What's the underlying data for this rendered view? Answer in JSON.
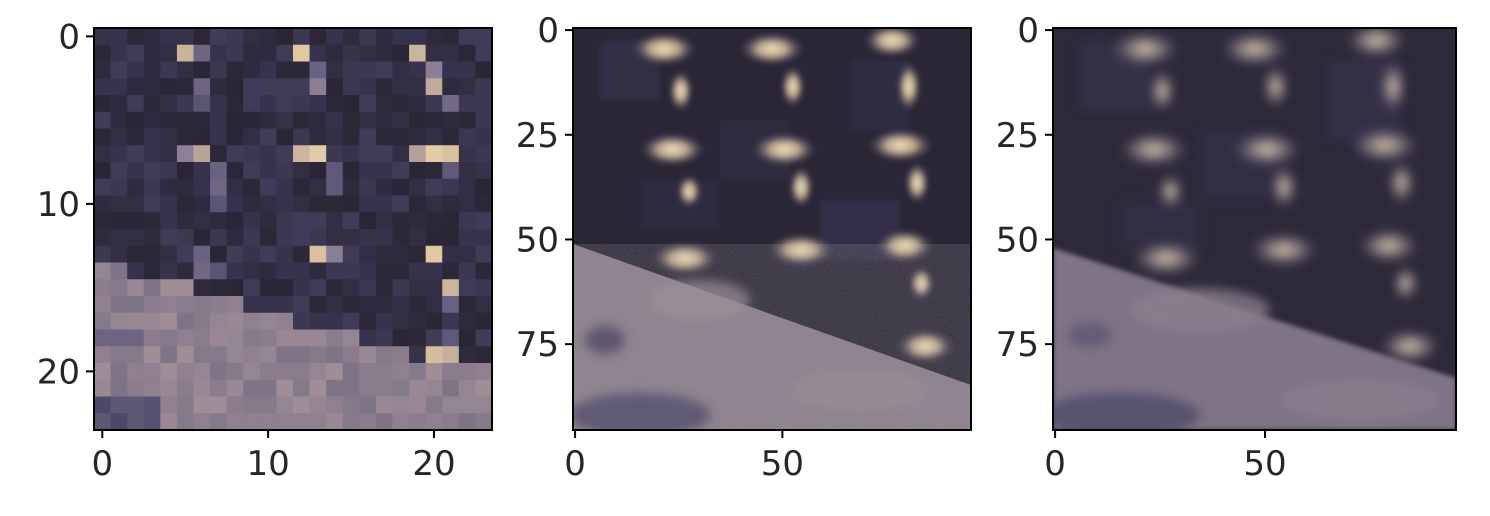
{
  "figure": {
    "panels": [
      {
        "id": "panel-1",
        "description_kind": "low-resolution 24x24 patch",
        "x_ticks": [
          "0",
          "10",
          "20"
        ],
        "y_ticks": [
          "0",
          "10",
          "20"
        ],
        "pixel_grid": 24
      },
      {
        "id": "panel-2",
        "description_kind": "high-resolution 96x96 patch",
        "x_ticks": [
          "0",
          "50"
        ],
        "y_ticks": [
          "0",
          "25",
          "50",
          "75"
        ],
        "pixel_grid": 96
      },
      {
        "id": "panel-3",
        "description_kind": "reconstructed 96x96 patch",
        "x_ticks": [
          "0",
          "50"
        ],
        "y_ticks": [
          "0",
          "25",
          "50",
          "75"
        ],
        "pixel_grid": 96
      }
    ],
    "colors": {
      "dark_fabric": "#2c2838",
      "light_surface": "#8a7c8c",
      "highlight": "#d9c49c",
      "mid_blue": "#4a4a6a"
    }
  }
}
